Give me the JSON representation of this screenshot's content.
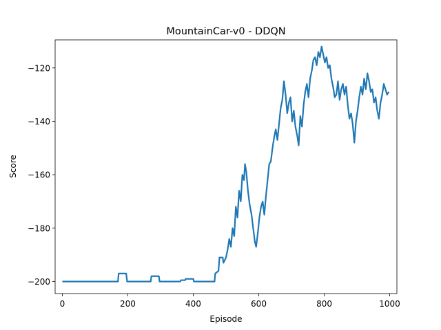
{
  "chart_data": {
    "type": "line",
    "title": "MountainCar-v0 - DDQN",
    "xlabel": "Episode",
    "ylabel": "Score",
    "xlim": [
      -22,
      1022
    ],
    "ylim": [
      -204.5,
      -109.5
    ],
    "xticks": [
      0,
      200,
      400,
      600,
      800,
      1000
    ],
    "yticks": [
      -200,
      -180,
      -160,
      -140,
      -120
    ],
    "grid": false,
    "legend": "none",
    "series": [
      {
        "color": "#1f77b4",
        "x": [
          0,
          170,
          172,
          195,
          198,
          270,
          272,
          295,
          297,
          360,
          362,
          375,
          377,
          400,
          402,
          465,
          467,
          477,
          480,
          490,
          492,
          500,
          505,
          510,
          515,
          520,
          525,
          530,
          535,
          540,
          545,
          550,
          555,
          558,
          562,
          567,
          572,
          578,
          583,
          588,
          592,
          597,
          602,
          607,
          612,
          617,
          622,
          627,
          632,
          637,
          642,
          647,
          652,
          657,
          662,
          667,
          672,
          677,
          682,
          687,
          692,
          697,
          702,
          707,
          712,
          717,
          722,
          727,
          732,
          737,
          742,
          747,
          752,
          757,
          762,
          767,
          772,
          777,
          782,
          787,
          792,
          797,
          802,
          807,
          812,
          817,
          822,
          827,
          832,
          837,
          842,
          847,
          852,
          857,
          862,
          867,
          872,
          877,
          882,
          887,
          892,
          897,
          902,
          907,
          912,
          917,
          922,
          927,
          932,
          937,
          942,
          947,
          952,
          957,
          962,
          967,
          972,
          977,
          982,
          987,
          992,
          997
        ],
        "y": [
          -200,
          -200,
          -197,
          -197,
          -200,
          -200,
          -198,
          -198,
          -200,
          -200,
          -199.5,
          -199.5,
          -199,
          -199,
          -200,
          -200,
          -197,
          -196,
          -191,
          -191,
          -193,
          -191,
          -188,
          -184,
          -187,
          -180,
          -183,
          -172,
          -176,
          -166,
          -170,
          -160,
          -162,
          -156,
          -159,
          -166,
          -171,
          -175,
          -180,
          -185,
          -187,
          -182,
          -176,
          -172,
          -170,
          -175,
          -168,
          -162,
          -156,
          -155,
          -150,
          -146,
          -143,
          -147,
          -141,
          -135,
          -132,
          -125,
          -130,
          -137,
          -133,
          -131,
          -140,
          -136,
          -142,
          -145,
          -149,
          -138,
          -142,
          -134,
          -129,
          -126,
          -131,
          -124,
          -121,
          -117,
          -116,
          -119,
          -114,
          -116,
          -112,
          -115,
          -118,
          -116,
          -120,
          -119,
          -124,
          -127,
          -131,
          -130,
          -125,
          -132,
          -128,
          -126,
          -130,
          -127,
          -134,
          -139,
          -137,
          -141,
          -148,
          -140,
          -136,
          -131,
          -127,
          -130,
          -124,
          -128,
          -122,
          -125,
          -129,
          -128,
          -133,
          -131,
          -136,
          -139,
          -133,
          -130,
          -126,
          -128,
          -130,
          -129
        ]
      }
    ]
  }
}
